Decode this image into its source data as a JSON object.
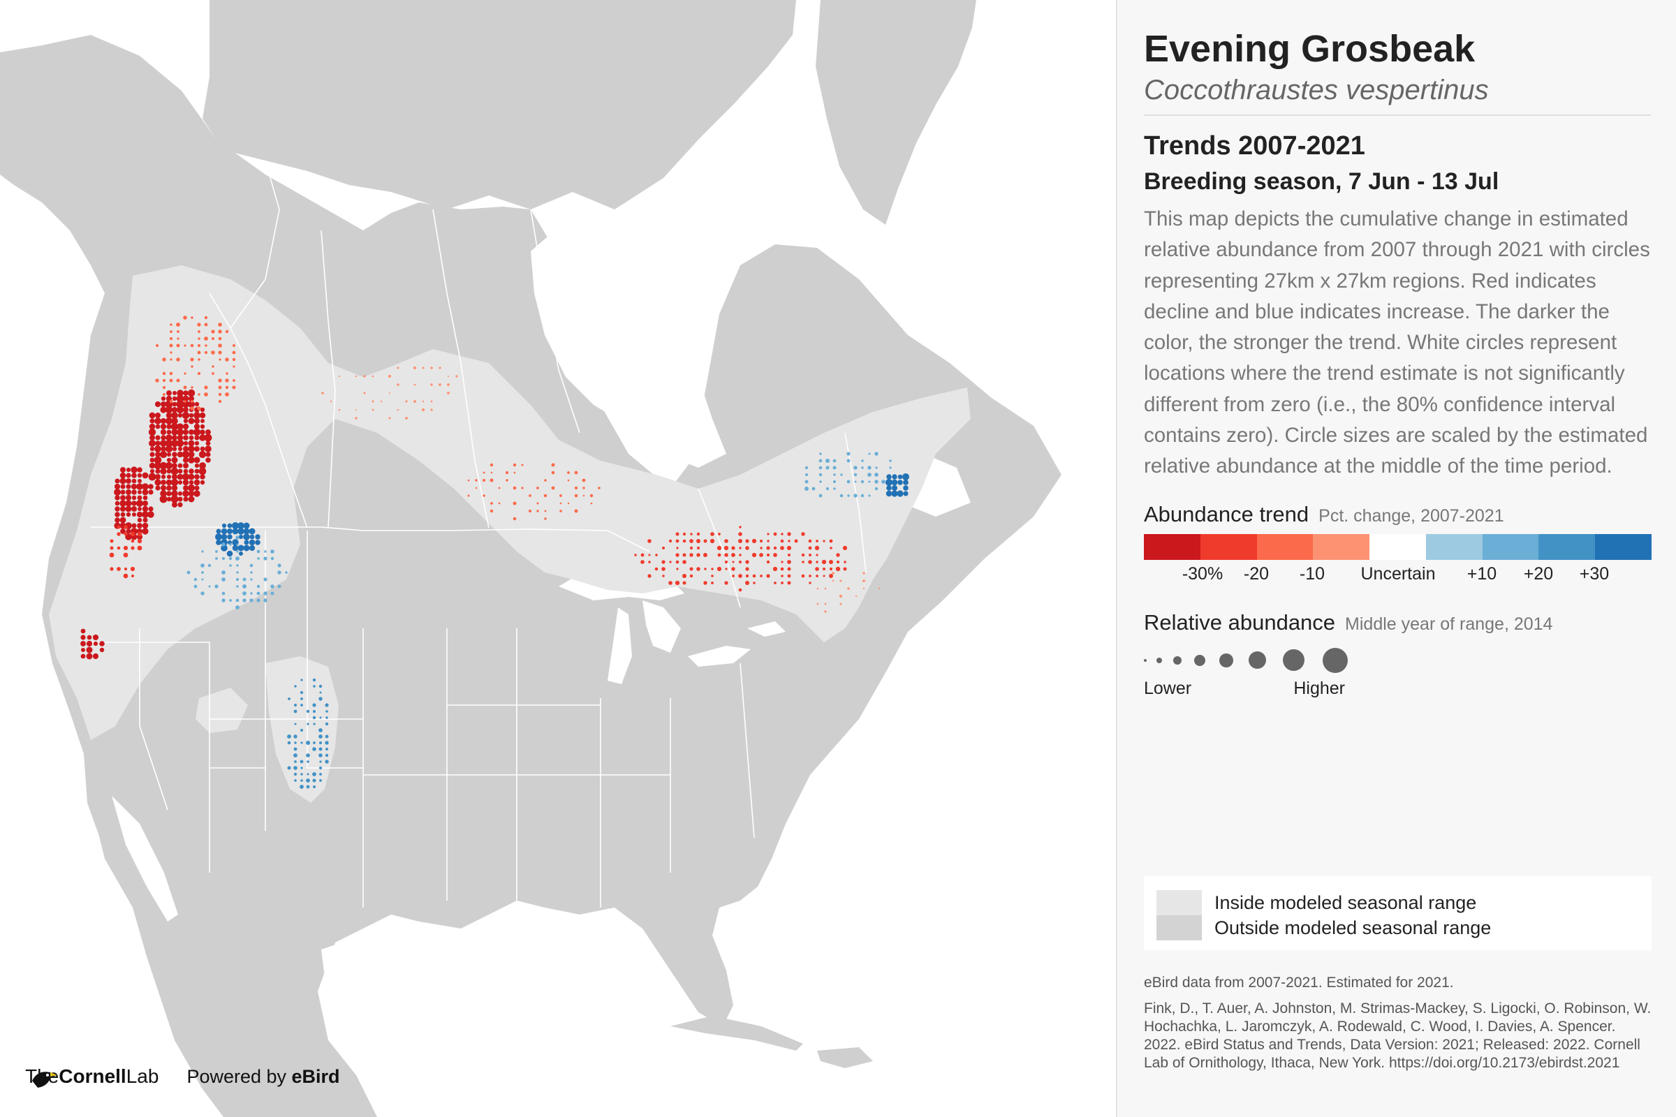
{
  "species": {
    "common_name": "Evening Grosbeak",
    "scientific_name": "Coccothraustes vespertinus"
  },
  "map_meta": {
    "trend_title": "Trends 2007-2021",
    "season": "Breeding season, 7 Jun - 13 Jul",
    "description": "This map depicts the cumulative change in estimated relative abundance from 2007 through 2021 with circles representing 27km x 27km regions. Red indicates decline and blue indicates increase. The darker the color, the stronger the trend. White circles represent locations where the trend estimate is not significantly different from zero (i.e., the 80% confidence interval contains zero). Circle sizes are scaled by the estimated relative abundance at the middle of the time period."
  },
  "legend": {
    "trend": {
      "title": "Abundance trend",
      "subtitle": "Pct. change, 2007-2021",
      "colors": [
        "#cb181d",
        "#ef3b2c",
        "#fb6a4a",
        "#fc9272",
        "#ffffff",
        "#9ecae1",
        "#6baed6",
        "#4292c6",
        "#2171b5"
      ],
      "labels": [
        "-30%",
        "-20",
        "-10",
        "Uncertain",
        "+10",
        "+20",
        "+30"
      ]
    },
    "abundance": {
      "title": "Relative abundance",
      "subtitle": "Middle year of range, 2014",
      "low_label": "Lower",
      "high_label": "Higher"
    },
    "range": {
      "inside_label": "Inside modeled seasonal range",
      "outside_label": "Outside modeled seasonal range",
      "inside_color": "#e6e6e6",
      "outside_color": "#d3d3d3"
    }
  },
  "footer": {
    "data_note": "eBird data from 2007-2021. Estimated for 2021.",
    "citation": "Fink, D., T. Auer, A. Johnston, M. Strimas-Mackey, S. Ligocki, O. Robinson, W. Hochachka, L. Jaromczyk, A. Rodewald, C. Wood, I. Davies, A. Spencer. 2022. eBird Status and Trends, Data Version: 2021; Released: 2022. Cornell Lab of Ornithology, Ithaca, New York. https://doi.org/10.2173/ebirdst.2021"
  },
  "logos": {
    "lab_prefix": "The",
    "lab_name": "Cornell",
    "lab_suffix": "Lab",
    "powered_prefix": "Powered by ",
    "powered_name": "eBird"
  },
  "colors": {
    "land": "#cfcfcf",
    "water": "#ffffff",
    "range_fill": "#e6e6e6",
    "decline": "#cb181d",
    "increase": "#2171b5"
  }
}
